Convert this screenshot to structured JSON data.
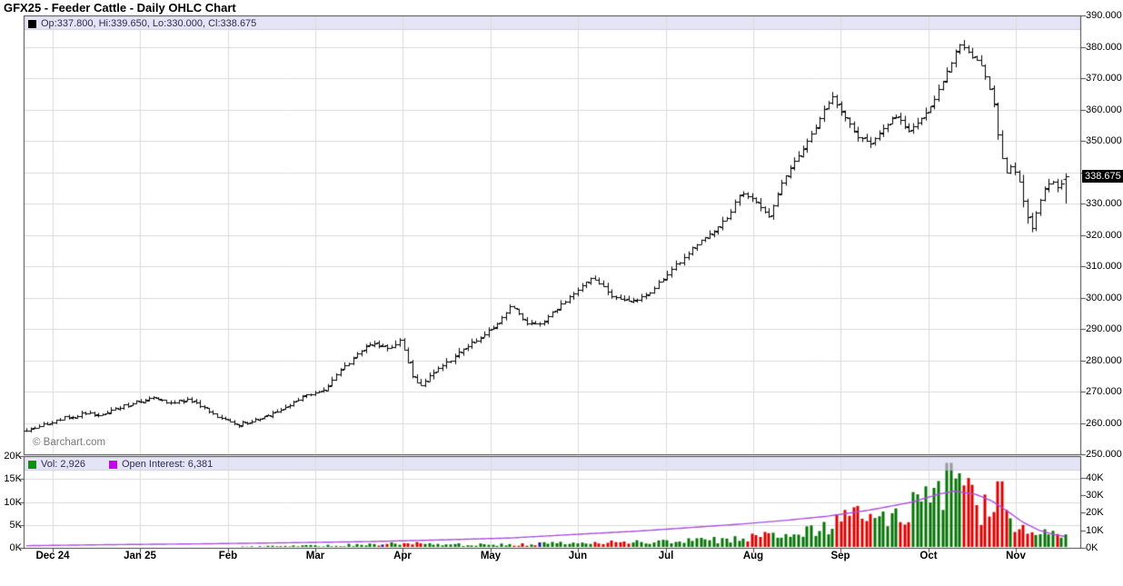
{
  "page": {
    "title": "GFX25 - Feeder Cattle - Daily OHLC Chart"
  },
  "watermark": "© Barchart.com",
  "price_panel": {
    "legend": {
      "marker_color": "#000000",
      "text": "Op:337.800, Hi:339.650, Lo:330.000, Cl:338.675"
    },
    "axis_right_labels": [
      "390.000",
      "380.000",
      "370.000",
      "360.000",
      "350.000",
      "330.000",
      "320.000",
      "310.000",
      "300.000",
      "290.000",
      "280.000",
      "270.000",
      "260.000",
      "250.000"
    ],
    "last_price_badge": {
      "text": "338.675",
      "bg": "#000000",
      "fg": "#ffffff"
    }
  },
  "volume_panel": {
    "legend_vol": {
      "marker_color": "#089408",
      "label": "Vol: 2,926"
    },
    "legend_oi": {
      "marker_color": "#c800f0",
      "label": "Open Interest: 6,381"
    },
    "axis_left_labels": [
      "20K",
      "15K",
      "10K",
      "5K",
      "0K"
    ],
    "axis_right_labels": [
      "40K",
      "30K",
      "20K",
      "10K",
      "0K"
    ]
  },
  "x_axis": {
    "months": [
      "Dec 24",
      "Jan 25",
      "Feb",
      "Mar",
      "Apr",
      "May",
      "Jun",
      "Jul",
      "Aug",
      "Sep",
      "Oct",
      "Nov"
    ]
  },
  "chart_data": {
    "type": "ohlc",
    "symbol": "GFX25",
    "title": "GFX25 - Feeder Cattle - Daily OHLC Chart",
    "subchart": "volume_and_open_interest",
    "price_axis": {
      "min": 250,
      "max": 390,
      "tick_step": 10,
      "side": "right"
    },
    "volume_axis_left_k": {
      "min": 0,
      "max": 20,
      "tick_step": 5
    },
    "open_interest_axis_right_k": {
      "min": 0,
      "max": 40,
      "tick_step": 10
    },
    "last_bar": {
      "open": 337.8,
      "high": 339.65,
      "low": 330.0,
      "close": 338.675
    },
    "last_volume_k": 2.926,
    "last_open_interest_k": 6.381,
    "close_trend": [
      [
        0.002,
        257.5
      ],
      [
        0.03,
        261
      ],
      [
        0.055,
        263
      ],
      [
        0.072,
        262.5
      ],
      [
        0.094,
        265.5
      ],
      [
        0.119,
        268
      ],
      [
        0.141,
        266.5
      ],
      [
        0.158,
        267.5
      ],
      [
        0.18,
        262.5
      ],
      [
        0.203,
        259.5
      ],
      [
        0.222,
        261.5
      ],
      [
        0.244,
        264
      ],
      [
        0.265,
        268.5
      ],
      [
        0.283,
        270.5
      ],
      [
        0.3,
        277
      ],
      [
        0.317,
        282.5
      ],
      [
        0.33,
        286
      ],
      [
        0.343,
        283.5
      ],
      [
        0.356,
        286.5
      ],
      [
        0.369,
        274
      ],
      [
        0.375,
        271.5
      ],
      [
        0.386,
        276
      ],
      [
        0.407,
        281
      ],
      [
        0.424,
        285.5
      ],
      [
        0.446,
        291
      ],
      [
        0.461,
        297.5
      ],
      [
        0.474,
        292
      ],
      [
        0.489,
        291.5
      ],
      [
        0.503,
        296
      ],
      [
        0.521,
        301.5
      ],
      [
        0.538,
        307
      ],
      [
        0.555,
        301
      ],
      [
        0.575,
        298.5
      ],
      [
        0.592,
        301.5
      ],
      [
        0.612,
        309
      ],
      [
        0.632,
        315.5
      ],
      [
        0.655,
        322
      ],
      [
        0.669,
        327.5
      ],
      [
        0.678,
        334
      ],
      [
        0.693,
        330.5
      ],
      [
        0.704,
        325.5
      ],
      [
        0.718,
        338
      ],
      [
        0.732,
        345
      ],
      [
        0.744,
        351.5
      ],
      [
        0.755,
        358.5
      ],
      [
        0.764,
        364.5
      ],
      [
        0.775,
        358
      ],
      [
        0.787,
        352
      ],
      [
        0.801,
        349.5
      ],
      [
        0.813,
        354
      ],
      [
        0.824,
        358.5
      ],
      [
        0.837,
        353.5
      ],
      [
        0.847,
        356.5
      ],
      [
        0.861,
        363
      ],
      [
        0.873,
        372
      ],
      [
        0.885,
        381
      ],
      [
        0.895,
        378
      ],
      [
        0.906,
        373.5
      ],
      [
        0.916,
        364.5
      ],
      [
        0.921,
        352.5
      ],
      [
        0.928,
        339.5
      ],
      [
        0.935,
        342
      ],
      [
        0.941,
        337.5
      ],
      [
        0.948,
        327.5
      ],
      [
        0.953,
        321.5
      ],
      [
        0.96,
        330
      ],
      [
        0.967,
        336.5
      ],
      [
        0.974,
        337.5
      ],
      [
        0.979,
        334.5
      ],
      [
        0.985,
        338.675
      ]
    ],
    "bar_range_hint": [
      [
        0,
        1.6
      ],
      [
        0.2,
        1.8
      ],
      [
        0.3,
        2.2
      ],
      [
        0.37,
        3.0
      ],
      [
        0.45,
        2.4
      ],
      [
        0.55,
        2.6
      ],
      [
        0.62,
        2.4
      ],
      [
        0.7,
        3.0
      ],
      [
        0.76,
        3.4
      ],
      [
        0.85,
        3.4
      ],
      [
        0.9,
        3.6
      ],
      [
        0.92,
        5.0
      ],
      [
        0.945,
        5.5
      ],
      [
        0.97,
        4.0
      ],
      [
        0.985,
        5.0
      ]
    ],
    "volume_trend_k": [
      [
        0,
        0.06
      ],
      [
        0.1,
        0.08
      ],
      [
        0.18,
        0.15
      ],
      [
        0.24,
        0.35
      ],
      [
        0.3,
        0.55
      ],
      [
        0.36,
        1.0
      ],
      [
        0.42,
        0.65
      ],
      [
        0.47,
        0.75
      ],
      [
        0.52,
        1.0
      ],
      [
        0.57,
        1.2
      ],
      [
        0.62,
        1.4
      ],
      [
        0.66,
        1.7
      ],
      [
        0.7,
        2.6
      ],
      [
        0.73,
        3.0
      ],
      [
        0.755,
        4.2
      ],
      [
        0.775,
        6.5
      ],
      [
        0.787,
        9.0
      ],
      [
        0.8,
        6.5
      ],
      [
        0.82,
        7.5
      ],
      [
        0.84,
        8.5
      ],
      [
        0.855,
        9.5
      ],
      [
        0.868,
        11.0
      ],
      [
        0.8755,
        13.0
      ],
      [
        0.885,
        12.0
      ],
      [
        0.895,
        10.5
      ],
      [
        0.905,
        8.5
      ],
      [
        0.916,
        9.0
      ],
      [
        0.923,
        10.0
      ],
      [
        0.935,
        6.0
      ],
      [
        0.945,
        4.5
      ],
      [
        0.956,
        3.8
      ],
      [
        0.966,
        3.2
      ],
      [
        0.975,
        2.8
      ],
      [
        0.985,
        2.926
      ]
    ],
    "volume_spikes_k": [
      [
        0.8755,
        18.5
      ],
      [
        0.923,
        14.5
      ]
    ],
    "open_interest_k": [
      [
        0,
        1.2
      ],
      [
        0.08,
        1.8
      ],
      [
        0.17,
        2.3
      ],
      [
        0.25,
        2.9
      ],
      [
        0.33,
        3.6
      ],
      [
        0.4,
        4.6
      ],
      [
        0.46,
        5.6
      ],
      [
        0.52,
        7.6
      ],
      [
        0.58,
        9.5
      ],
      [
        0.63,
        11.5
      ],
      [
        0.68,
        13.6
      ],
      [
        0.72,
        15.6
      ],
      [
        0.76,
        18.0
      ],
      [
        0.8,
        21.5
      ],
      [
        0.84,
        26.0
      ],
      [
        0.865,
        30.5
      ],
      [
        0.88,
        32.3
      ],
      [
        0.9,
        30.5
      ],
      [
        0.916,
        26.5
      ],
      [
        0.93,
        21.0
      ],
      [
        0.945,
        14.5
      ],
      [
        0.96,
        10.0
      ],
      [
        0.975,
        7.5
      ],
      [
        0.985,
        6.381
      ]
    ],
    "colors": {
      "ohlc_bar": "#000000",
      "volume_up": "#077307",
      "volume_down": "#dd0000",
      "volume_unchanged": "#1a1a8c",
      "volume_clipped_tip": "#999999",
      "open_interest_line": "#aa4fe0",
      "legend_strip_bg": "#e4e4f6",
      "grid": "#dcdcdc",
      "frame": "#444444"
    }
  }
}
